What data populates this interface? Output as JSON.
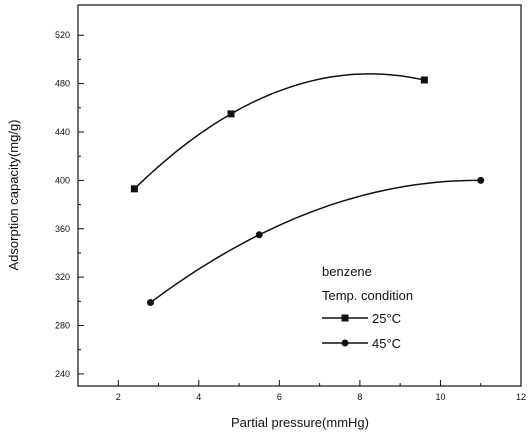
{
  "chart_data": {
    "type": "scatter",
    "xlabel": "Partial pressure(mmHg)",
    "ylabel": "Adsorption capacity(mg/g)",
    "xlim": [
      1,
      12
    ],
    "ylim": [
      230,
      545
    ],
    "xticks": [
      2,
      4,
      6,
      8,
      10,
      12
    ],
    "yticks": [
      240,
      280,
      320,
      360,
      400,
      440,
      480,
      520
    ],
    "grid": false,
    "legend": {
      "placement": "bottom-right",
      "title_lines": [
        "benzene",
        "Temp. condition"
      ]
    },
    "series": [
      {
        "name": "25°C",
        "marker": "square",
        "color": "#111111",
        "x": [
          2.4,
          4.8,
          9.6
        ],
        "y": [
          393,
          455,
          483
        ]
      },
      {
        "name": "45°C",
        "marker": "circle",
        "color": "#111111",
        "x": [
          2.8,
          5.5,
          11.0
        ],
        "y": [
          299,
          355,
          400
        ]
      }
    ]
  }
}
